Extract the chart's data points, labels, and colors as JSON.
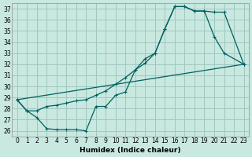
{
  "xlabel": "Humidex (Indice chaleur)",
  "bg_color": "#c8e8e0",
  "grid_color": "#a0c8c0",
  "line_color": "#006060",
  "xlim": [
    -0.5,
    23.5
  ],
  "ylim": [
    25.5,
    37.5
  ],
  "xticks": [
    0,
    1,
    2,
    3,
    4,
    5,
    6,
    7,
    8,
    9,
    10,
    11,
    12,
    13,
    14,
    15,
    16,
    17,
    18,
    19,
    20,
    21,
    22,
    23
  ],
  "yticks": [
    26,
    27,
    28,
    29,
    30,
    31,
    32,
    33,
    34,
    35,
    36,
    37
  ],
  "line1_x": [
    0,
    1,
    2,
    3,
    4,
    5,
    6,
    7,
    8,
    9,
    10,
    11,
    12,
    13,
    14,
    15,
    16,
    17,
    18,
    19,
    20,
    21,
    23
  ],
  "line1_y": [
    28.8,
    27.8,
    27.8,
    28.2,
    28.3,
    28.5,
    28.7,
    28.8,
    29.2,
    29.6,
    30.2,
    30.8,
    31.5,
    32.1,
    33.0,
    35.2,
    37.2,
    37.2,
    36.8,
    36.8,
    36.7,
    36.7,
    32.0
  ],
  "line2_x": [
    0,
    1,
    2,
    3,
    4,
    5,
    6,
    7,
    8,
    9,
    10,
    11,
    12,
    13,
    14,
    15,
    16,
    17,
    18,
    19,
    20,
    21,
    23
  ],
  "line2_y": [
    28.8,
    27.8,
    27.2,
    26.2,
    26.1,
    26.1,
    26.1,
    26.0,
    28.2,
    28.2,
    29.2,
    29.5,
    31.5,
    32.5,
    33.0,
    35.2,
    37.2,
    37.2,
    36.8,
    36.8,
    34.5,
    33.0,
    32.0
  ],
  "line3_x": [
    0,
    23
  ],
  "line3_y": [
    28.8,
    32.0
  ]
}
